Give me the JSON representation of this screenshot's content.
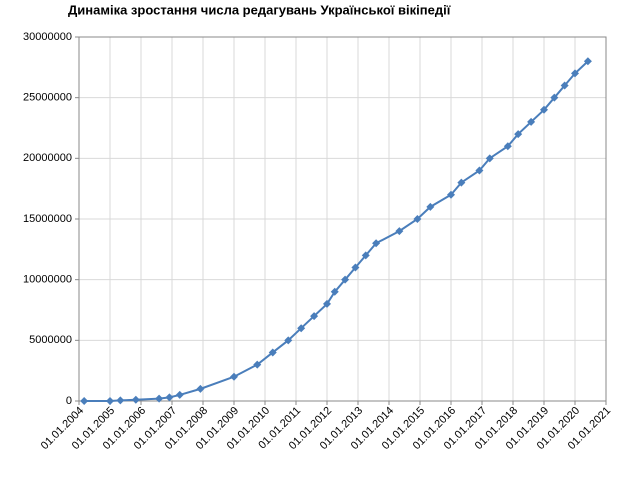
{
  "chart_data": {
    "type": "line",
    "title": "Динаміка зростання числа редагувань Української вікіпедії",
    "x": [
      "2004-03",
      "2005-01",
      "2005-05",
      "2005-11",
      "2006-08",
      "2006-12",
      "2007-04",
      "2007-12",
      "2009-01",
      "2009-10",
      "2010-04",
      "2010-10",
      "2011-03",
      "2011-08",
      "2012-01",
      "2012-04",
      "2012-08",
      "2012-12",
      "2013-04",
      "2013-08",
      "2014-05",
      "2014-12",
      "2015-05",
      "2016-01",
      "2016-05",
      "2016-12",
      "2017-04",
      "2017-11",
      "2018-03",
      "2018-08",
      "2019-01",
      "2019-05",
      "2019-09",
      "2020-01",
      "2020-06"
    ],
    "series": [
      {
        "color": "#4a7ebb",
        "values": [
          0,
          0,
          50000,
          100000,
          200000,
          300000,
          500000,
          1000000,
          2000000,
          3000000,
          4000000,
          5000000,
          6000000,
          7000000,
          8000000,
          9000000,
          10000000,
          11000000,
          12000000,
          13000000,
          14000000,
          15000000,
          16000000,
          17000000,
          18000000,
          19000000,
          20000000,
          21000000,
          22000000,
          23000000,
          24000000,
          25000000,
          26000000,
          27000000,
          28000000
        ]
      }
    ],
    "xlim": [
      "2004-01-01",
      "2021-01-01"
    ],
    "xticks": [
      {
        "value": "2004-01-01",
        "label": "01.01.2004"
      },
      {
        "value": "2005-01-01",
        "label": "01.01.2005"
      },
      {
        "value": "2006-01-01",
        "label": "01.01.2006"
      },
      {
        "value": "2007-01-01",
        "label": "01.01.2007"
      },
      {
        "value": "2008-01-01",
        "label": "01.01.2008"
      },
      {
        "value": "2009-01-01",
        "label": "01.01.2009"
      },
      {
        "value": "2010-01-01",
        "label": "01.01.2010"
      },
      {
        "value": "2011-01-01",
        "label": "01.01.2011"
      },
      {
        "value": "2012-01-01",
        "label": "01.01.2012"
      },
      {
        "value": "2013-01-01",
        "label": "01.01.2013"
      },
      {
        "value": "2014-01-01",
        "label": "01.01.2014"
      },
      {
        "value": "2015-01-01",
        "label": "01.01.2015"
      },
      {
        "value": "2016-01-01",
        "label": "01.01.2016"
      },
      {
        "value": "2017-01-01",
        "label": "01.01.2017"
      },
      {
        "value": "2018-01-01",
        "label": "01.01.2018"
      },
      {
        "value": "2019-01-01",
        "label": "01.01.2019"
      },
      {
        "value": "2020-01-01",
        "label": "01.01.2020"
      },
      {
        "value": "2021-01-01",
        "label": "01.01.2021"
      }
    ],
    "ylim": [
      0,
      30000000
    ],
    "yticks": [
      0,
      5000000,
      10000000,
      15000000,
      20000000,
      25000000,
      30000000
    ],
    "grid": true
  }
}
